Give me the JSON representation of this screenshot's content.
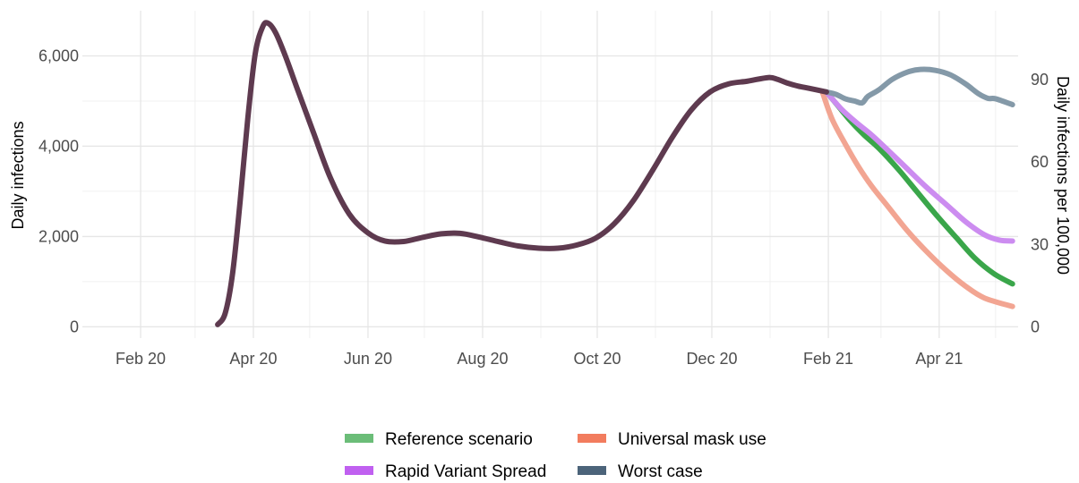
{
  "chart_data": {
    "type": "line",
    "title": "",
    "xlabel": "",
    "ylabel": "Daily infections",
    "ylabel_right": "Daily infections per 100,000",
    "x_ticks": [
      {
        "date": "2020-02-01",
        "label": "Feb 20"
      },
      {
        "date": "2020-04-01",
        "label": "Apr 20"
      },
      {
        "date": "2020-06-01",
        "label": "Jun 20"
      },
      {
        "date": "2020-08-01",
        "label": "Aug 20"
      },
      {
        "date": "2020-10-01",
        "label": "Oct 20"
      },
      {
        "date": "2020-12-01",
        "label": "Dec 20"
      },
      {
        "date": "2021-02-01",
        "label": "Feb 21"
      },
      {
        "date": "2021-04-01",
        "label": "Apr 21"
      }
    ],
    "y_ticks": [
      {
        "value": 0,
        "label": "0"
      },
      {
        "value": 2000,
        "label": "2,000"
      },
      {
        "value": 4000,
        "label": "4,000"
      },
      {
        "value": 6000,
        "label": "6,000"
      }
    ],
    "y_right_ticks": [
      {
        "value": 0,
        "label": "0"
      },
      {
        "value": 30,
        "label": "30"
      },
      {
        "value": 60,
        "label": "60"
      },
      {
        "value": 90,
        "label": "90"
      }
    ],
    "xlim": [
      "2020-01-01",
      "2021-05-13"
    ],
    "ylim": [
      -250,
      7000
    ],
    "y_right_ratio": 60.8,
    "grid": true,
    "legend_position": "bottom",
    "series": [
      {
        "name": "Reference scenario",
        "color": "#3aa64a",
        "legend_color": "#6bbd78",
        "points": [
          [
            "2021-01-31",
            5200
          ],
          [
            "2021-02-06",
            4900
          ],
          [
            "2021-02-13",
            4550
          ],
          [
            "2021-02-20",
            4250
          ],
          [
            "2021-02-28",
            3950
          ],
          [
            "2021-03-10",
            3500
          ],
          [
            "2021-03-20",
            3000
          ],
          [
            "2021-03-31",
            2450
          ],
          [
            "2021-04-10",
            1980
          ],
          [
            "2021-04-20",
            1520
          ],
          [
            "2021-04-30",
            1180
          ],
          [
            "2021-05-10",
            950
          ]
        ]
      },
      {
        "name": "Universal mask use",
        "color": "#f2a592",
        "legend_color": "#f27c5e",
        "points": [
          [
            "2021-01-29",
            5180
          ],
          [
            "2021-02-03",
            4600
          ],
          [
            "2021-02-10",
            4050
          ],
          [
            "2021-02-17",
            3550
          ],
          [
            "2021-02-24",
            3120
          ],
          [
            "2021-03-05",
            2650
          ],
          [
            "2021-03-15",
            2130
          ],
          [
            "2021-03-25",
            1680
          ],
          [
            "2021-04-05",
            1240
          ],
          [
            "2021-04-15",
            900
          ],
          [
            "2021-04-25",
            640
          ],
          [
            "2021-05-10",
            450
          ]
        ]
      },
      {
        "name": "Rapid Variant Spread",
        "color": "#cc8cf0",
        "legend_color": "#c060f0",
        "points": [
          [
            "2021-01-31",
            5200
          ],
          [
            "2021-02-08",
            4820
          ],
          [
            "2021-02-16",
            4520
          ],
          [
            "2021-02-24",
            4250
          ],
          [
            "2021-03-05",
            3900
          ],
          [
            "2021-03-15",
            3500
          ],
          [
            "2021-03-25",
            3100
          ],
          [
            "2021-04-05",
            2700
          ],
          [
            "2021-04-15",
            2330
          ],
          [
            "2021-04-25",
            2040
          ],
          [
            "2021-05-03",
            1920
          ],
          [
            "2021-05-10",
            1900
          ]
        ]
      },
      {
        "name": "Worst case",
        "color": "#8499a8",
        "legend_color": "#4c647a",
        "points": [
          [
            "2021-01-31",
            5200
          ],
          [
            "2021-02-05",
            5150
          ],
          [
            "2021-02-10",
            5050
          ],
          [
            "2021-02-15",
            5000
          ],
          [
            "2021-02-19",
            4960
          ],
          [
            "2021-02-22",
            5100
          ],
          [
            "2021-02-28",
            5250
          ],
          [
            "2021-03-07",
            5480
          ],
          [
            "2021-03-15",
            5640
          ],
          [
            "2021-03-22",
            5700
          ],
          [
            "2021-03-30",
            5680
          ],
          [
            "2021-04-07",
            5580
          ],
          [
            "2021-04-15",
            5380
          ],
          [
            "2021-04-22",
            5160
          ],
          [
            "2021-04-27",
            5060
          ],
          [
            "2021-05-01",
            5050
          ],
          [
            "2021-05-10",
            4920
          ]
        ]
      },
      {
        "name": "",
        "color": "#5e3a4f",
        "legend_color": "",
        "points": [
          [
            "2020-03-13",
            50
          ],
          [
            "2020-03-17",
            300
          ],
          [
            "2020-03-21",
            1200
          ],
          [
            "2020-03-25",
            2800
          ],
          [
            "2020-03-29",
            4600
          ],
          [
            "2020-04-02",
            6050
          ],
          [
            "2020-04-06",
            6650
          ],
          [
            "2020-04-09",
            6720
          ],
          [
            "2020-04-13",
            6500
          ],
          [
            "2020-04-18",
            6000
          ],
          [
            "2020-04-25",
            5200
          ],
          [
            "2020-05-03",
            4300
          ],
          [
            "2020-05-12",
            3300
          ],
          [
            "2020-05-22",
            2500
          ],
          [
            "2020-06-01",
            2080
          ],
          [
            "2020-06-10",
            1900
          ],
          [
            "2020-06-20",
            1890
          ],
          [
            "2020-06-30",
            1980
          ],
          [
            "2020-07-10",
            2060
          ],
          [
            "2020-07-20",
            2070
          ],
          [
            "2020-07-30",
            1990
          ],
          [
            "2020-08-10",
            1880
          ],
          [
            "2020-08-20",
            1790
          ],
          [
            "2020-08-31",
            1740
          ],
          [
            "2020-09-10",
            1740
          ],
          [
            "2020-09-20",
            1810
          ],
          [
            "2020-09-30",
            1960
          ],
          [
            "2020-10-10",
            2280
          ],
          [
            "2020-10-20",
            2780
          ],
          [
            "2020-10-31",
            3500
          ],
          [
            "2020-11-10",
            4200
          ],
          [
            "2020-11-20",
            4800
          ],
          [
            "2020-11-30",
            5200
          ],
          [
            "2020-12-10",
            5380
          ],
          [
            "2020-12-20",
            5440
          ],
          [
            "2020-12-31",
            5520
          ],
          [
            "2021-01-05",
            5480
          ],
          [
            "2021-01-10",
            5400
          ],
          [
            "2021-01-16",
            5330
          ],
          [
            "2021-01-22",
            5280
          ],
          [
            "2021-01-31",
            5200
          ]
        ]
      }
    ]
  }
}
